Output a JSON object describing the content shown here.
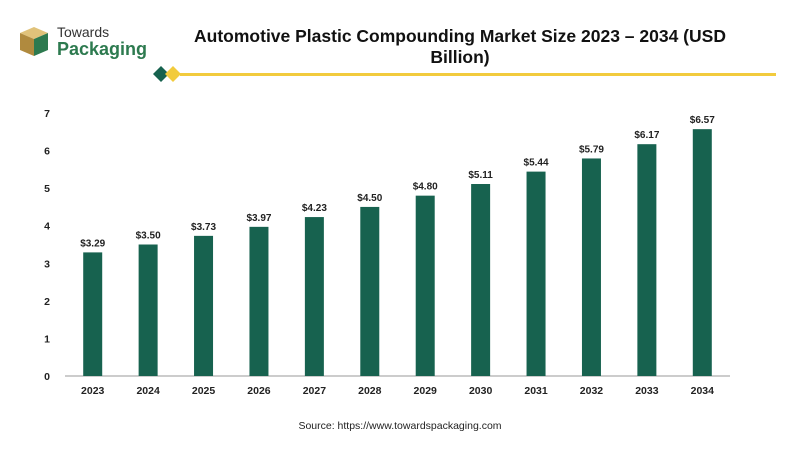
{
  "brand": {
    "line1": "Towards",
    "line2": "Packaging"
  },
  "title": "Automotive Plastic Compounding Market Size 2023 – 2034 (USD Billion)",
  "source": "Source: https://www.towardspackaging.com",
  "colors": {
    "bar": "#17624f",
    "accent": "#f2cb3d",
    "brand_green": "#2d7a4f",
    "brand_box": "#c9a55a"
  },
  "chart_data": {
    "type": "bar",
    "categories": [
      "2023",
      "2024",
      "2025",
      "2026",
      "2027",
      "2028",
      "2029",
      "2030",
      "2031",
      "2032",
      "2033",
      "2034"
    ],
    "values": [
      3.29,
      3.5,
      3.73,
      3.97,
      4.23,
      4.5,
      4.8,
      5.11,
      5.44,
      5.79,
      6.17,
      6.57
    ],
    "data_labels": [
      "$3.29",
      "$3.50",
      "$3.73",
      "$3.97",
      "$4.23",
      "$4.50",
      "$4.80",
      "$5.11",
      "$5.44",
      "$5.79",
      "$6.17",
      "$6.57"
    ],
    "title": "Automotive Plastic Compounding Market Size 2023 – 2034 (USD Billion)",
    "xlabel": "",
    "ylabel": "",
    "ylim": [
      0,
      7
    ],
    "yticks": [
      0,
      1,
      2,
      3,
      4,
      5,
      6,
      7
    ],
    "grid": false,
    "legend": "none"
  }
}
